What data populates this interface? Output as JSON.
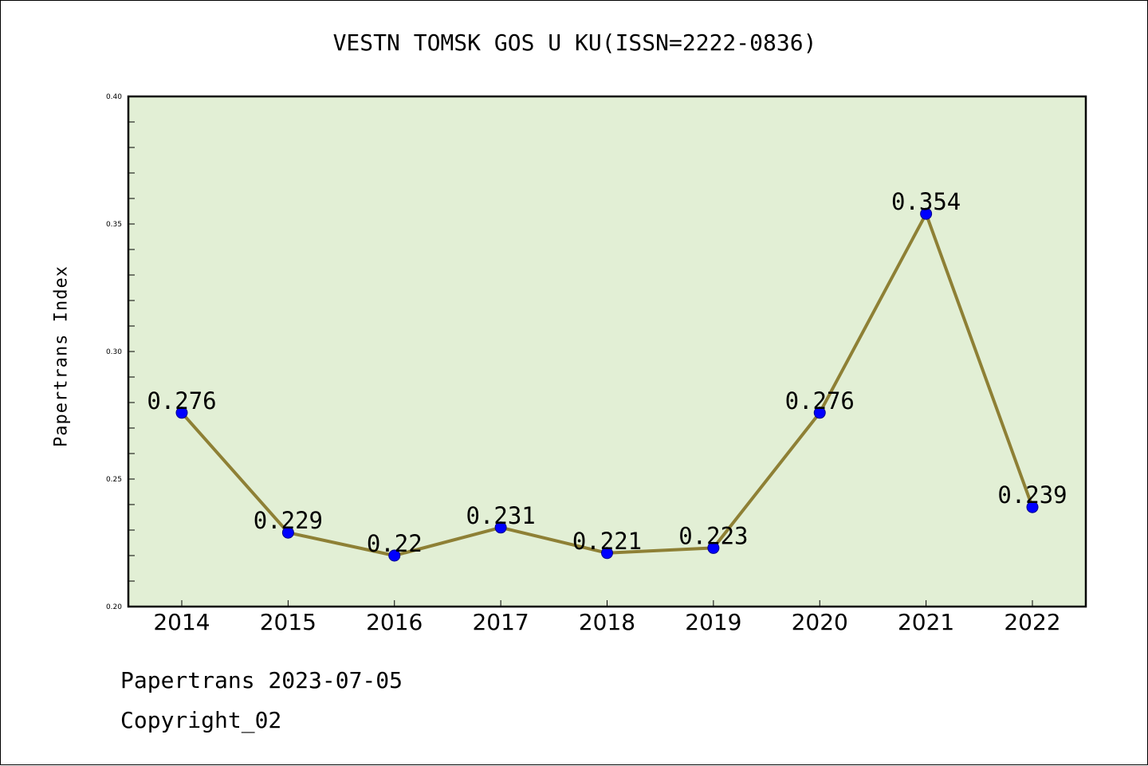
{
  "chart_data": {
    "type": "line",
    "title": "VESTN TOMSK GOS U KU(ISSN=2222-0836)",
    "xlabel": "",
    "ylabel": "Papertrans Index",
    "categories": [
      "2014",
      "2015",
      "2016",
      "2017",
      "2018",
      "2019",
      "2020",
      "2021",
      "2022"
    ],
    "series": [
      {
        "values": [
          0.276,
          0.229,
          0.22,
          0.231,
          0.221,
          0.223,
          0.276,
          0.354,
          0.239
        ],
        "data_labels": [
          "0.276",
          "0.229",
          "0.22",
          "0.231",
          "0.221",
          "0.223",
          "0.276",
          "0.354",
          "0.239"
        ]
      }
    ],
    "ylim": [
      0.2,
      0.4
    ],
    "yticks": [
      "0.20",
      "0.25",
      "0.30",
      "0.35",
      "0.40"
    ],
    "grid": false,
    "colors": {
      "plot_background": "#e2efd5",
      "line": "#8e8035",
      "marker": "#0000ff"
    }
  },
  "footer": {
    "line1": "Papertrans 2023-07-05",
    "line2": "Copyright_02"
  }
}
